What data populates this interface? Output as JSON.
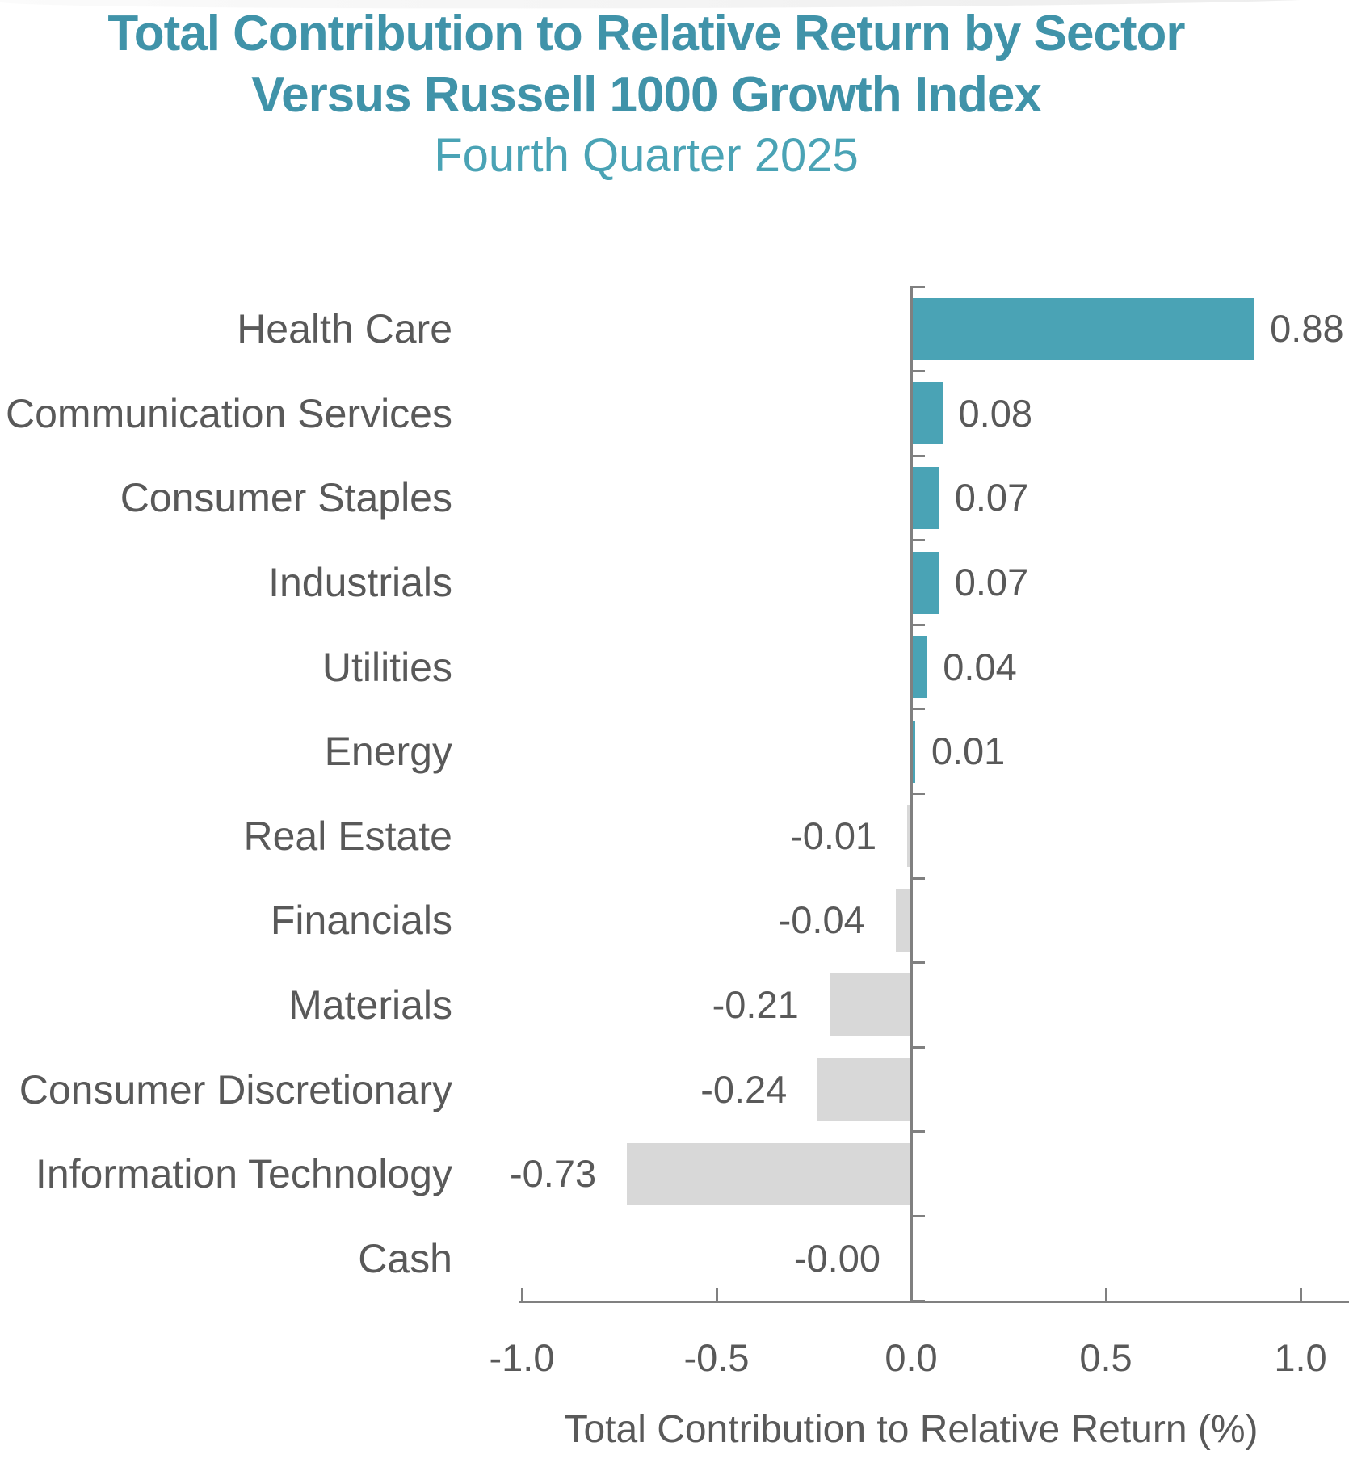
{
  "title": {
    "line1": "Total Contribution to Relative Return by Sector",
    "line2": "Versus Russell 1000 Growth Index",
    "subtitle": "Fourth Quarter 2025"
  },
  "chart_data": {
    "type": "bar",
    "orientation": "horizontal",
    "title": "Total Contribution to Relative Return by Sector Versus Russell 1000 Growth Index",
    "subtitle": "Fourth Quarter 2025",
    "categories": [
      "Health Care",
      "Communication Services",
      "Consumer Staples",
      "Industrials",
      "Utilities",
      "Energy",
      "Real Estate",
      "Financials",
      "Materials",
      "Consumer Discretionary",
      "Information Technology",
      "Cash"
    ],
    "values": [
      0.88,
      0.08,
      0.07,
      0.07,
      0.04,
      0.01,
      -0.01,
      -0.04,
      -0.21,
      -0.24,
      -0.73,
      0.0
    ],
    "value_labels": [
      "0.88",
      "0.08",
      "0.07",
      "0.07",
      "0.04",
      "0.01",
      "-0.01",
      "-0.04",
      "-0.21",
      "-0.24",
      "-0.73",
      "-0.00"
    ],
    "xlabel": "Total Contribution to Relative Return (%)",
    "xlim": [
      -1.0,
      1.0
    ],
    "x_ticks": [
      -1.0,
      -0.5,
      0.0,
      0.5,
      1.0
    ],
    "x_tick_labels": [
      "-1.0",
      "-0.5",
      "0.0",
      "0.5",
      "1.0"
    ],
    "grid": false,
    "legend": false,
    "positive_color": "#4AA3B5",
    "negative_color": "#D8D8D8",
    "axis_color": "#808080",
    "label_color": "#595959",
    "title_color": "#4093A9"
  }
}
